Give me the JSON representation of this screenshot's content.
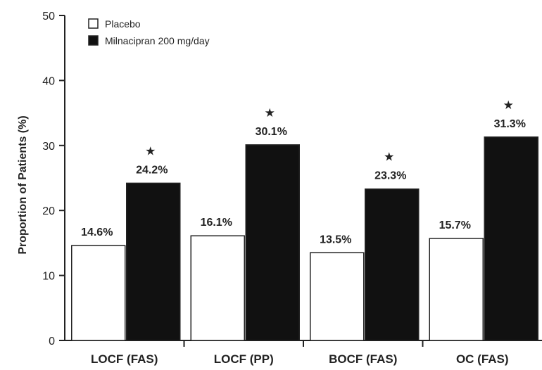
{
  "chart_data": {
    "type": "bar",
    "ylabel": "Proportion of Patients (%)",
    "xlabel": "",
    "ylim": [
      0,
      50
    ],
    "yticks": [
      0,
      10,
      20,
      30,
      40,
      50
    ],
    "categories": [
      "LOCF (FAS)",
      "LOCF (PP)",
      "BOCF (FAS)",
      "OC (FAS)"
    ],
    "series": [
      {
        "name": "Placebo",
        "color": "#ffffff",
        "values": [
          14.6,
          16.1,
          13.5,
          15.7
        ],
        "labels": [
          "14.6%",
          "16.1%",
          "13.5%",
          "15.7%"
        ]
      },
      {
        "name": "Milnacipran 200 mg/day",
        "color": "#111111",
        "values": [
          24.2,
          30.1,
          23.3,
          31.3
        ],
        "labels": [
          "24.2%",
          "30.1%",
          "23.3%",
          "31.3%"
        ],
        "significance_marker": "★"
      }
    ],
    "legend_position": "top-left",
    "grid": false
  }
}
